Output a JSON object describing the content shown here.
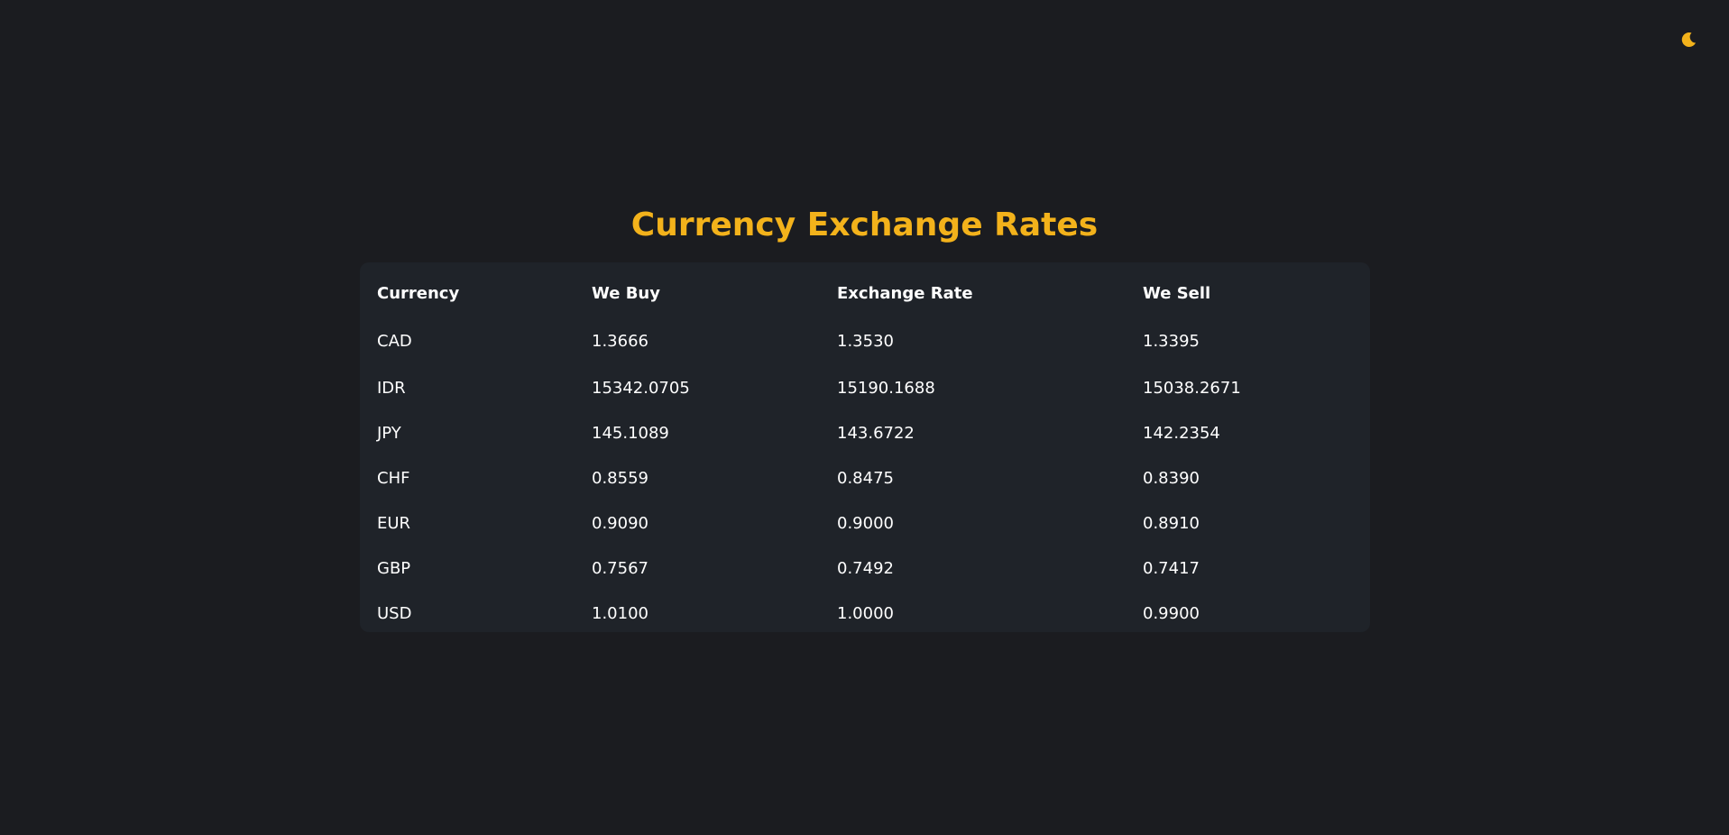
{
  "header": {
    "theme_toggle_icon": "moon-icon",
    "moon_color": "#f3b21b"
  },
  "main": {
    "title": "Currency Exchange Rates",
    "table": {
      "columns": [
        "Currency",
        "We Buy",
        "Exchange Rate",
        "We Sell"
      ],
      "rows": [
        {
          "currency": "CAD",
          "we_buy": "1.3666",
          "exchange_rate": "1.3530",
          "we_sell": "1.3395"
        },
        {
          "currency": "IDR",
          "we_buy": "15342.0705",
          "exchange_rate": "15190.1688",
          "we_sell": "15038.2671"
        },
        {
          "currency": "JPY",
          "we_buy": "145.1089",
          "exchange_rate": "143.6722",
          "we_sell": "142.2354"
        },
        {
          "currency": "CHF",
          "we_buy": "0.8559",
          "exchange_rate": "0.8475",
          "we_sell": "0.8390"
        },
        {
          "currency": "EUR",
          "we_buy": "0.9090",
          "exchange_rate": "0.9000",
          "we_sell": "0.8910"
        },
        {
          "currency": "GBP",
          "we_buy": "0.7567",
          "exchange_rate": "0.7492",
          "we_sell": "0.7417"
        },
        {
          "currency": "USD",
          "we_buy": "1.0100",
          "exchange_rate": "1.0000",
          "we_sell": "0.9900"
        }
      ]
    }
  },
  "colors": {
    "background": "#1b1c20",
    "panel": "#1f2329",
    "accent": "#f3b21b",
    "text": "#ffffff"
  }
}
